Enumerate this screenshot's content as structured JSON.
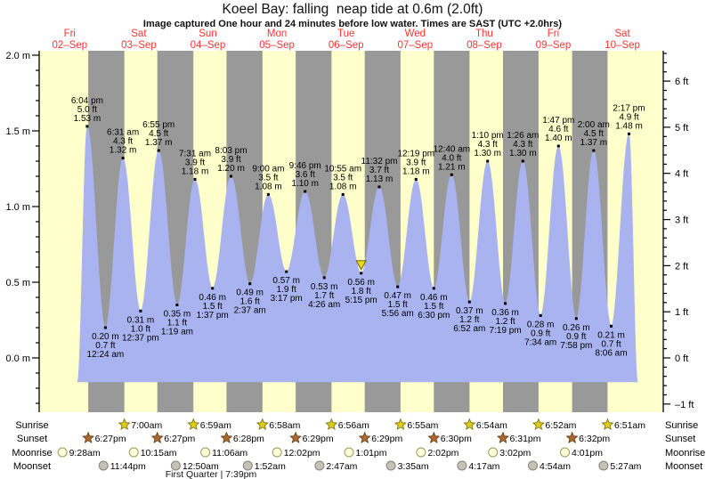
{
  "title": "Koeel Bay: falling  neap tide at 0.6m (2.0ft)",
  "subtitle": "Image captured One hour and 24 minutes before low water. Times are SAST (UTC +2.0hrs)",
  "days": [
    {
      "dow": "Fri",
      "date": "02–Sep"
    },
    {
      "dow": "Sat",
      "date": "03–Sep"
    },
    {
      "dow": "Sun",
      "date": "04–Sep"
    },
    {
      "dow": "Mon",
      "date": "05–Sep"
    },
    {
      "dow": "Tue",
      "date": "06–Sep"
    },
    {
      "dow": "Wed",
      "date": "07–Sep"
    },
    {
      "dow": "Thu",
      "date": "08–Sep"
    },
    {
      "dow": "Fri",
      "date": "09–Sep"
    },
    {
      "dow": "Sat",
      "date": "10–Sep"
    }
  ],
  "chart_data": {
    "type": "area",
    "title": "Koeel Bay tide heights 02-Sep to 10-Sep",
    "x_categories": [
      "Fri 02–Sep",
      "Sat 03–Sep",
      "Sun 04–Sep",
      "Mon 05–Sep",
      "Tue 06–Sep",
      "Wed 07–Sep",
      "Thu 08–Sep",
      "Fri 09–Sep",
      "Sat 10–Sep"
    ],
    "y_axis_left": {
      "unit": "m",
      "range": [
        -0.35,
        2.05
      ],
      "tick_labels": [
        {
          "v": 2.0,
          "label": "2.0 m"
        },
        {
          "v": 1.5,
          "label": "1.5 m"
        },
        {
          "v": 1.0,
          "label": "1.0 m"
        },
        {
          "v": 0.5,
          "label": "0.5 m"
        },
        {
          "v": 0.0,
          "label": "0.0 m"
        }
      ]
    },
    "y_axis_right": {
      "unit": "ft",
      "tick_labels": [
        {
          "v": 6,
          "label": "6 ft"
        },
        {
          "v": 5,
          "label": "5 ft"
        },
        {
          "v": 4,
          "label": "4 ft"
        },
        {
          "v": 3,
          "label": "3 ft"
        },
        {
          "v": 2,
          "label": "2 ft"
        },
        {
          "v": 1,
          "label": "1 ft"
        },
        {
          "v": 0,
          "label": "0 ft"
        },
        {
          "v": -1,
          "label": "–1 ft"
        }
      ]
    },
    "tide_events": [
      {
        "day": 0,
        "time": "6:04 pm",
        "type": "high",
        "m": "1.53",
        "ft": "5.0"
      },
      {
        "day": 1,
        "time": "12:24 am",
        "type": "low",
        "m": "0.20",
        "ft": "0.7"
      },
      {
        "day": 1,
        "time": "6:31 am",
        "type": "high",
        "m": "1.32",
        "ft": "4.3"
      },
      {
        "day": 1,
        "time": "12:37 pm",
        "type": "low",
        "m": "0.31",
        "ft": "1.0"
      },
      {
        "day": 1,
        "time": "6:55 pm",
        "type": "high",
        "m": "1.37",
        "ft": "4.5"
      },
      {
        "day": 2,
        "time": "1:19 am",
        "type": "low",
        "m": "0.35",
        "ft": "1.1"
      },
      {
        "day": 2,
        "time": "7:31 am",
        "type": "high",
        "m": "1.18",
        "ft": "3.9"
      },
      {
        "day": 2,
        "time": "1:37 pm",
        "type": "low",
        "m": "0.46",
        "ft": "1.5"
      },
      {
        "day": 2,
        "time": "8:03 pm",
        "type": "high",
        "m": "1.20",
        "ft": "3.9"
      },
      {
        "day": 3,
        "time": "2:37 am",
        "type": "low",
        "m": "0.49",
        "ft": "1.6"
      },
      {
        "day": 3,
        "time": "9:00 am",
        "type": "high",
        "m": "1.08",
        "ft": "3.5"
      },
      {
        "day": 3,
        "time": "3:17 pm",
        "type": "low",
        "m": "0.57",
        "ft": "1.9"
      },
      {
        "day": 3,
        "time": "9:46 pm",
        "type": "high",
        "m": "1.10",
        "ft": "3.6"
      },
      {
        "day": 4,
        "time": "4:26 am",
        "type": "low",
        "m": "0.53",
        "ft": "1.7"
      },
      {
        "day": 4,
        "time": "10:55 am",
        "type": "high",
        "m": "1.08",
        "ft": "3.5"
      },
      {
        "day": 4,
        "time": "5:15 pm",
        "type": "low",
        "m": "0.56",
        "ft": "1.8",
        "current": true
      },
      {
        "day": 4,
        "time": "11:32 pm",
        "type": "high",
        "m": "1.13",
        "ft": "3.7"
      },
      {
        "day": 5,
        "time": "5:56 am",
        "type": "low",
        "m": "0.47",
        "ft": "1.5"
      },
      {
        "day": 5,
        "time": "12:19 pm",
        "type": "high",
        "m": "1.18",
        "ft": "3.9"
      },
      {
        "day": 5,
        "time": "6:30 pm",
        "type": "low",
        "m": "0.46",
        "ft": "1.5"
      },
      {
        "day": 6,
        "time": "12:40 am",
        "type": "high",
        "m": "1.21",
        "ft": "4.0"
      },
      {
        "day": 6,
        "time": "6:52 am",
        "type": "low",
        "m": "0.37",
        "ft": "1.2"
      },
      {
        "day": 6,
        "time": "1:10 pm",
        "type": "high",
        "m": "1.30",
        "ft": "4.3"
      },
      {
        "day": 6,
        "time": "7:19 pm",
        "type": "low",
        "m": "0.36",
        "ft": "1.2"
      },
      {
        "day": 7,
        "time": "1:26 am",
        "type": "high",
        "m": "1.30",
        "ft": "4.3"
      },
      {
        "day": 7,
        "time": "7:34 am",
        "type": "low",
        "m": "0.28",
        "ft": "0.9"
      },
      {
        "day": 7,
        "time": "1:47 pm",
        "type": "high",
        "m": "1.40",
        "ft": "4.6"
      },
      {
        "day": 7,
        "time": "7:58 pm",
        "type": "low",
        "m": "0.26",
        "ft": "0.9"
      },
      {
        "day": 8,
        "time": "2:00 am",
        "type": "high",
        "m": "1.37",
        "ft": "4.5"
      },
      {
        "day": 8,
        "time": "8:06 am",
        "type": "low",
        "m": "0.21",
        "ft": "0.7"
      },
      {
        "day": 8,
        "time": "2:17 pm",
        "type": "high",
        "m": "1.48",
        "ft": "4.9"
      }
    ]
  },
  "astro": {
    "rows": [
      {
        "id": "sunrise",
        "label": "Sunrise",
        "icon": "sunrise-star-icon",
        "events": [
          {
            "day": 1,
            "time": "7:00am"
          },
          {
            "day": 2,
            "time": "6:59am"
          },
          {
            "day": 3,
            "time": "6:58am"
          },
          {
            "day": 4,
            "time": "6:56am"
          },
          {
            "day": 5,
            "time": "6:55am"
          },
          {
            "day": 6,
            "time": "6:54am"
          },
          {
            "day": 7,
            "time": "6:52am"
          },
          {
            "day": 8,
            "time": "6:51am"
          }
        ]
      },
      {
        "id": "sunset",
        "label": "Sunset",
        "icon": "sunset-star-icon",
        "events": [
          {
            "day": 0,
            "time": "6:27pm"
          },
          {
            "day": 1,
            "time": "6:27pm"
          },
          {
            "day": 2,
            "time": "6:28pm"
          },
          {
            "day": 3,
            "time": "6:29pm"
          },
          {
            "day": 4,
            "time": "6:29pm"
          },
          {
            "day": 5,
            "time": "6:30pm"
          },
          {
            "day": 6,
            "time": "6:31pm"
          },
          {
            "day": 7,
            "time": "6:32pm"
          }
        ]
      },
      {
        "id": "moonrise",
        "label": "Moonrise",
        "icon": "moonrise-circle-icon",
        "events": [
          {
            "day": 0,
            "time": "9:28am"
          },
          {
            "day": 1,
            "time": "10:15am"
          },
          {
            "day": 2,
            "time": "11:06am"
          },
          {
            "day": 3,
            "time": "12:02pm"
          },
          {
            "day": 4,
            "time": "1:01pm"
          },
          {
            "day": 5,
            "time": "2:02pm"
          },
          {
            "day": 6,
            "time": "3:02pm"
          },
          {
            "day": 7,
            "time": "4:01pm"
          }
        ]
      },
      {
        "id": "moonset",
        "label": "Moonset",
        "icon": "moonset-circle-icon",
        "events": [
          {
            "day": 0,
            "time": "11:44pm"
          },
          {
            "day": 2,
            "time": "12:50am"
          },
          {
            "day": 3,
            "time": "1:52am"
          },
          {
            "day": 4,
            "time": "2:47am"
          },
          {
            "day": 5,
            "time": "3:35am"
          },
          {
            "day": 6,
            "time": "4:17am"
          },
          {
            "day": 7,
            "time": "4:54am"
          },
          {
            "day": 8,
            "time": "5:27am"
          }
        ]
      }
    ],
    "moon_phase": "First Quarter | 7:39pm"
  },
  "colors": {
    "day_band": "#ffffcc",
    "night_band": "#999999",
    "tide_fill": "#a9b3f0",
    "date_label": "#ff3333",
    "axis_ink": "#000000",
    "sunrise_star": "#ddce1e",
    "sunset_star": "#a96a33",
    "moonrise_circle": "#ffffd9",
    "moonset_circle": "#c3c3b6",
    "current_marker": "#e8d822"
  }
}
